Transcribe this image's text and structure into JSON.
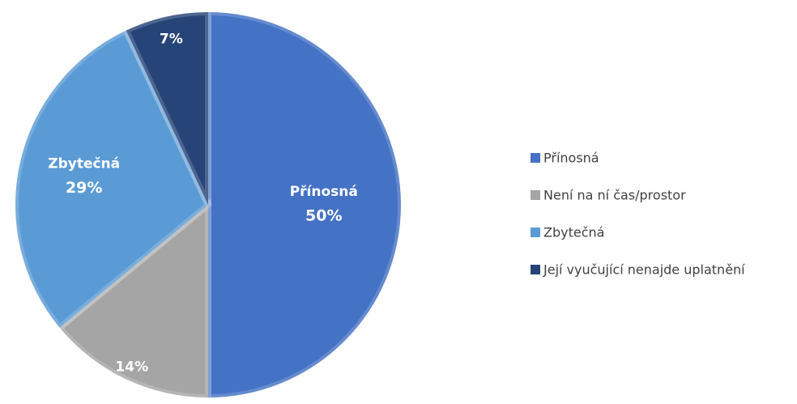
{
  "chart_data": {
    "type": "pie",
    "categories": [
      "Přínosná",
      "Není na ní čas/prostor",
      "Zbytečná",
      "Její vyučující nenajde uplatnění"
    ],
    "values": [
      50,
      14,
      29,
      7
    ],
    "value_labels": [
      "50%",
      "14%",
      "29%",
      "7%"
    ],
    "colors": [
      "#4472c4",
      "#a5a5a5",
      "#5b9bd5",
      "#264478"
    ],
    "legend": "right"
  }
}
